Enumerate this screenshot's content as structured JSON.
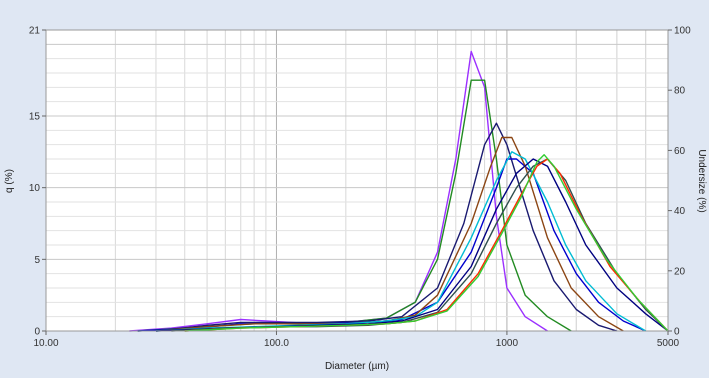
{
  "chart_data": {
    "type": "line",
    "xlabel": "Diameter (µm)",
    "ylabel": "q (%)",
    "y2label": "Undersize (%)",
    "xscale": "log",
    "xlim": [
      10,
      5000
    ],
    "ylim": [
      0,
      21
    ],
    "y2lim": [
      0,
      100
    ],
    "grid": true,
    "x_ticks": [
      {
        "value": 10,
        "label": "10.00"
      },
      {
        "value": 100,
        "label": "100.0"
      },
      {
        "value": 1000,
        "label": "1000"
      },
      {
        "value": 5000,
        "label": "5000"
      }
    ],
    "y_ticks": [
      {
        "value": 0,
        "label": "0"
      },
      {
        "value": 5,
        "label": "5"
      },
      {
        "value": 10,
        "label": "10"
      },
      {
        "value": 15,
        "label": "15"
      },
      {
        "value": 21,
        "label": "21"
      }
    ],
    "y2_ticks": [
      {
        "value": 0,
        "label": "0"
      },
      {
        "value": 20,
        "label": "20"
      },
      {
        "value": 40,
        "label": "40"
      },
      {
        "value": 60,
        "label": "60"
      },
      {
        "value": 80,
        "label": "80"
      },
      {
        "value": 100,
        "label": "100"
      }
    ],
    "series": [
      {
        "color": "#9b30ff",
        "points": [
          [
            23,
            0
          ],
          [
            35,
            0.2
          ],
          [
            50,
            0.5
          ],
          [
            70,
            0.8
          ],
          [
            90,
            0.7
          ],
          [
            130,
            0.55
          ],
          [
            200,
            0.6
          ],
          [
            300,
            0.9
          ],
          [
            400,
            2.0
          ],
          [
            500,
            5.5
          ],
          [
            600,
            12.0
          ],
          [
            700,
            19.5
          ],
          [
            800,
            17.0
          ],
          [
            900,
            8.0
          ],
          [
            1000,
            3.0
          ],
          [
            1200,
            1.0
          ],
          [
            1500,
            0
          ]
        ]
      },
      {
        "color": "#228b22",
        "points": [
          [
            25,
            0
          ],
          [
            40,
            0.2
          ],
          [
            60,
            0.4
          ],
          [
            80,
            0.5
          ],
          [
            120,
            0.5
          ],
          [
            200,
            0.6
          ],
          [
            300,
            0.9
          ],
          [
            400,
            2.0
          ],
          [
            500,
            5.0
          ],
          [
            600,
            11.0
          ],
          [
            700,
            17.5
          ],
          [
            800,
            17.5
          ],
          [
            900,
            12.0
          ],
          [
            1000,
            6.0
          ],
          [
            1200,
            2.5
          ],
          [
            1500,
            1.0
          ],
          [
            1900,
            0
          ]
        ]
      },
      {
        "color": "#191970",
        "points": [
          [
            30,
            0
          ],
          [
            50,
            0.4
          ],
          [
            70,
            0.6
          ],
          [
            100,
            0.6
          ],
          [
            150,
            0.6
          ],
          [
            250,
            0.7
          ],
          [
            350,
            1.0
          ],
          [
            500,
            3.0
          ],
          [
            650,
            7.5
          ],
          [
            800,
            13.0
          ],
          [
            900,
            14.5
          ],
          [
            1000,
            13.0
          ],
          [
            1300,
            7.0
          ],
          [
            1600,
            3.5
          ],
          [
            2000,
            1.5
          ],
          [
            2500,
            0.4
          ],
          [
            3000,
            0
          ]
        ]
      },
      {
        "color": "#0000cd",
        "points": [
          [
            25,
            0
          ],
          [
            45,
            0.2
          ],
          [
            70,
            0.5
          ],
          [
            100,
            0.5
          ],
          [
            150,
            0.5
          ],
          [
            250,
            0.6
          ],
          [
            350,
            0.8
          ],
          [
            500,
            2.0
          ],
          [
            700,
            5.5
          ],
          [
            900,
            10.0
          ],
          [
            1000,
            12.0
          ],
          [
            1100,
            12.0
          ],
          [
            1300,
            11.0
          ],
          [
            1600,
            7.0
          ],
          [
            2000,
            4.0
          ],
          [
            2500,
            2.0
          ],
          [
            3200,
            0.7
          ],
          [
            4000,
            0
          ]
        ]
      },
      {
        "color": "#8b4513",
        "points": [
          [
            30,
            0
          ],
          [
            50,
            0.3
          ],
          [
            80,
            0.5
          ],
          [
            120,
            0.5
          ],
          [
            200,
            0.5
          ],
          [
            300,
            0.7
          ],
          [
            400,
            1.1
          ],
          [
            500,
            2.5
          ],
          [
            700,
            7.5
          ],
          [
            850,
            11.5
          ],
          [
            950,
            13.5
          ],
          [
            1050,
            13.5
          ],
          [
            1200,
            11.5
          ],
          [
            1500,
            6.5
          ],
          [
            1900,
            3.0
          ],
          [
            2500,
            1.0
          ],
          [
            3200,
            0
          ]
        ]
      },
      {
        "color": "#00bcd4",
        "points": [
          [
            30,
            0
          ],
          [
            50,
            0.2
          ],
          [
            80,
            0.3
          ],
          [
            120,
            0.4
          ],
          [
            200,
            0.5
          ],
          [
            300,
            0.7
          ],
          [
            400,
            1.0
          ],
          [
            500,
            2.0
          ],
          [
            700,
            6.5
          ],
          [
            900,
            10.5
          ],
          [
            1050,
            12.5
          ],
          [
            1200,
            12.0
          ],
          [
            1500,
            9.0
          ],
          [
            1800,
            6.0
          ],
          [
            2200,
            3.5
          ],
          [
            3000,
            1.2
          ],
          [
            4000,
            0
          ]
        ]
      },
      {
        "color": "#000080",
        "points": [
          [
            30,
            0
          ],
          [
            60,
            0.2
          ],
          [
            100,
            0.3
          ],
          [
            150,
            0.4
          ],
          [
            250,
            0.5
          ],
          [
            350,
            0.7
          ],
          [
            500,
            1.5
          ],
          [
            700,
            4.5
          ],
          [
            900,
            8.5
          ],
          [
            1100,
            11.0
          ],
          [
            1300,
            12.0
          ],
          [
            1500,
            11.5
          ],
          [
            1800,
            9.0
          ],
          [
            2200,
            6.0
          ],
          [
            3000,
            3.0
          ],
          [
            4000,
            1.2
          ],
          [
            5000,
            0
          ]
        ]
      },
      {
        "color": "#2f4f4f",
        "points": [
          [
            35,
            0
          ],
          [
            60,
            0.2
          ],
          [
            100,
            0.3
          ],
          [
            150,
            0.3
          ],
          [
            250,
            0.4
          ],
          [
            350,
            0.6
          ],
          [
            500,
            1.3
          ],
          [
            700,
            4.0
          ],
          [
            900,
            7.5
          ],
          [
            1100,
            10.0
          ],
          [
            1300,
            11.5
          ],
          [
            1500,
            12.0
          ],
          [
            1800,
            10.5
          ],
          [
            2200,
            7.5
          ],
          [
            3000,
            4.0
          ],
          [
            4000,
            1.5
          ],
          [
            5000,
            0
          ]
        ]
      },
      {
        "color": "#ff2a00",
        "points": [
          [
            40,
            0
          ],
          [
            70,
            0.2
          ],
          [
            120,
            0.3
          ],
          [
            200,
            0.4
          ],
          [
            300,
            0.5
          ],
          [
            400,
            0.7
          ],
          [
            550,
            1.5
          ],
          [
            750,
            4.0
          ],
          [
            950,
            7.0
          ],
          [
            1150,
            9.5
          ],
          [
            1350,
            11.5
          ],
          [
            1500,
            12.0
          ],
          [
            1700,
            11.0
          ],
          [
            2100,
            8.0
          ],
          [
            2800,
            4.5
          ],
          [
            3800,
            2.0
          ],
          [
            5000,
            0
          ]
        ]
      },
      {
        "color": "#32cd32",
        "points": [
          [
            40,
            0
          ],
          [
            70,
            0.2
          ],
          [
            120,
            0.3
          ],
          [
            200,
            0.4
          ],
          [
            300,
            0.5
          ],
          [
            400,
            0.7
          ],
          [
            550,
            1.4
          ],
          [
            750,
            3.8
          ],
          [
            950,
            6.8
          ],
          [
            1150,
            9.3
          ],
          [
            1350,
            11.8
          ],
          [
            1450,
            12.3
          ],
          [
            1600,
            11.5
          ],
          [
            2000,
            8.5
          ],
          [
            2700,
            5.0
          ],
          [
            3700,
            2.2
          ],
          [
            5000,
            0
          ]
        ]
      }
    ]
  }
}
